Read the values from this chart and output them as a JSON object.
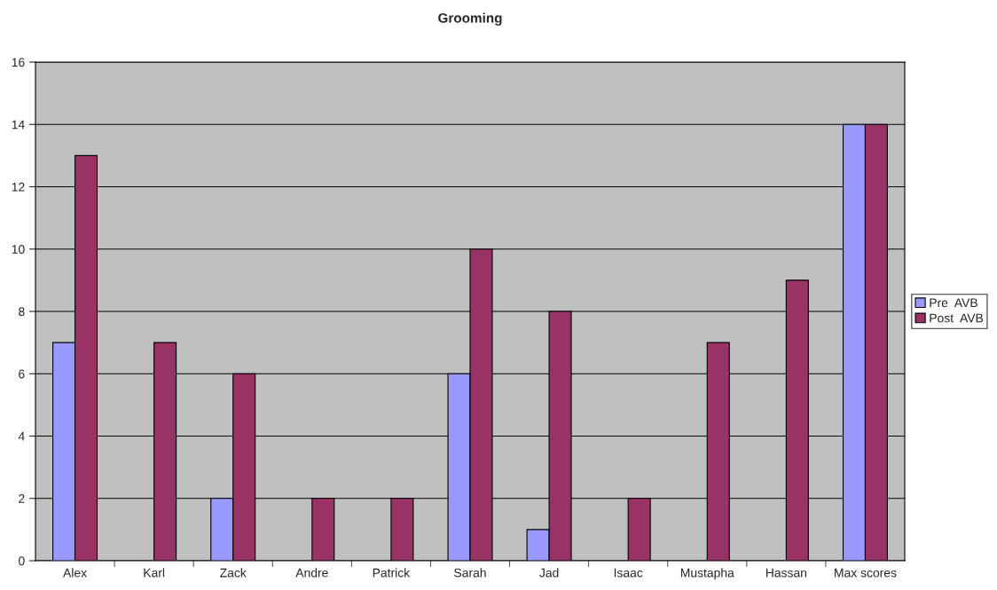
{
  "chart_data": {
    "type": "bar",
    "title": "Grooming",
    "categories": [
      "Alex",
      "Karl",
      "Zack",
      "Andre",
      "Patrick",
      "Sarah",
      "Jad",
      "Isaac",
      "Mustapha",
      "Hassan",
      "Max scores"
    ],
    "series": [
      {
        "name": "Pre  AVB",
        "color": "#9999ff",
        "values": [
          7,
          0,
          2,
          0,
          0,
          6,
          1,
          0,
          0,
          0,
          14
        ]
      },
      {
        "name": "Post  AVB",
        "color": "#993366",
        "values": [
          13,
          7,
          6,
          2,
          2,
          10,
          8,
          2,
          7,
          9,
          14
        ]
      }
    ],
    "ylim": [
      0,
      16
    ],
    "yticks": [
      0,
      2,
      4,
      6,
      8,
      10,
      12,
      14,
      16
    ],
    "grid": "y",
    "legend": "right"
  }
}
